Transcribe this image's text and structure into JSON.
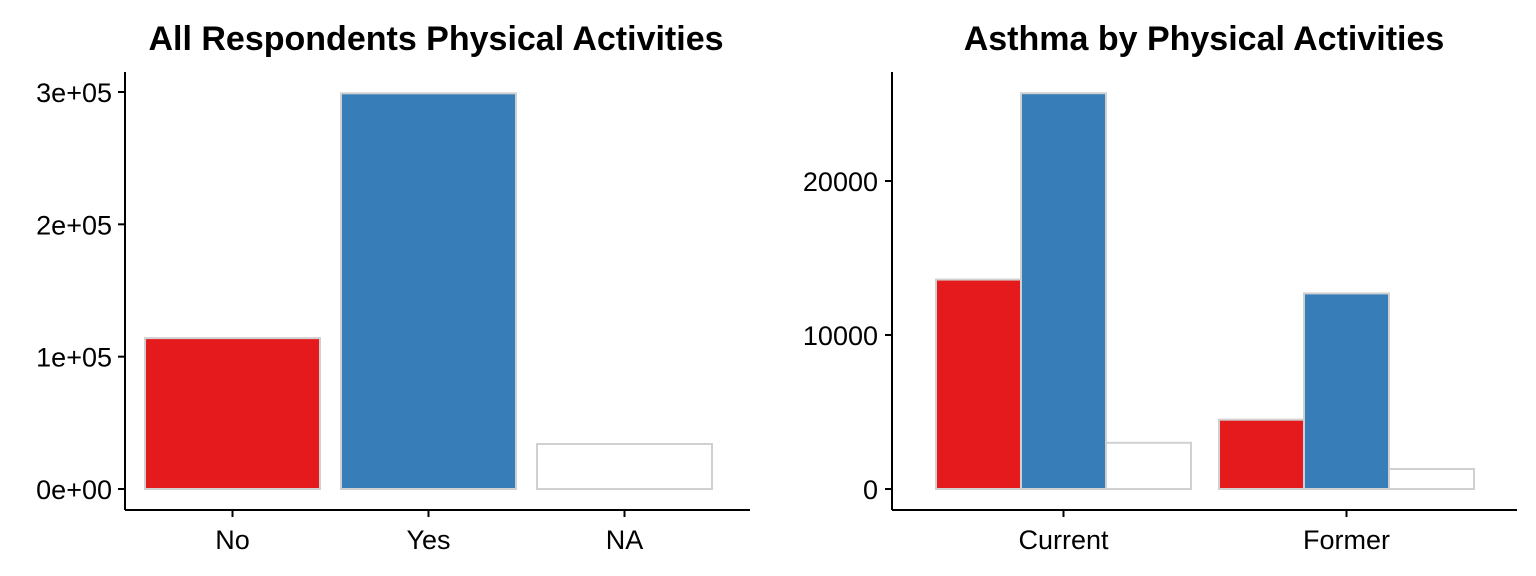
{
  "chart_data": [
    {
      "type": "bar",
      "title": "All Respondents Physical Activities",
      "xlabel": "",
      "ylabel": "",
      "categories": [
        "No",
        "Yes",
        "NA"
      ],
      "values": [
        114000,
        299000,
        34000
      ],
      "colors": [
        "#E41A1C",
        "#377EB8",
        "#FFFFFF"
      ],
      "ylim": [
        0,
        300000
      ],
      "yticks": [
        0,
        100000,
        200000,
        300000
      ],
      "ytick_labels": [
        "0e+00",
        "1e+05",
        "2e+05",
        "3e+05"
      ],
      "grid": false,
      "legend": "none"
    },
    {
      "type": "bar",
      "title": "Asthma by Physical Activities",
      "xlabel": "",
      "ylabel": "",
      "categories": [
        "Current",
        "Former"
      ],
      "series": [
        {
          "values": [
            13600,
            4500
          ],
          "color": "#E41A1C"
        },
        {
          "values": [
            25700,
            12700
          ],
          "color": "#377EB8"
        },
        {
          "values": [
            3000,
            1300
          ],
          "color": "#FFFFFF"
        }
      ],
      "ylim": [
        0,
        25700
      ],
      "yticks": [
        0,
        10000,
        20000
      ],
      "ytick_labels": [
        "0",
        "10000",
        "20000"
      ],
      "grid": false,
      "legend": "none"
    }
  ]
}
